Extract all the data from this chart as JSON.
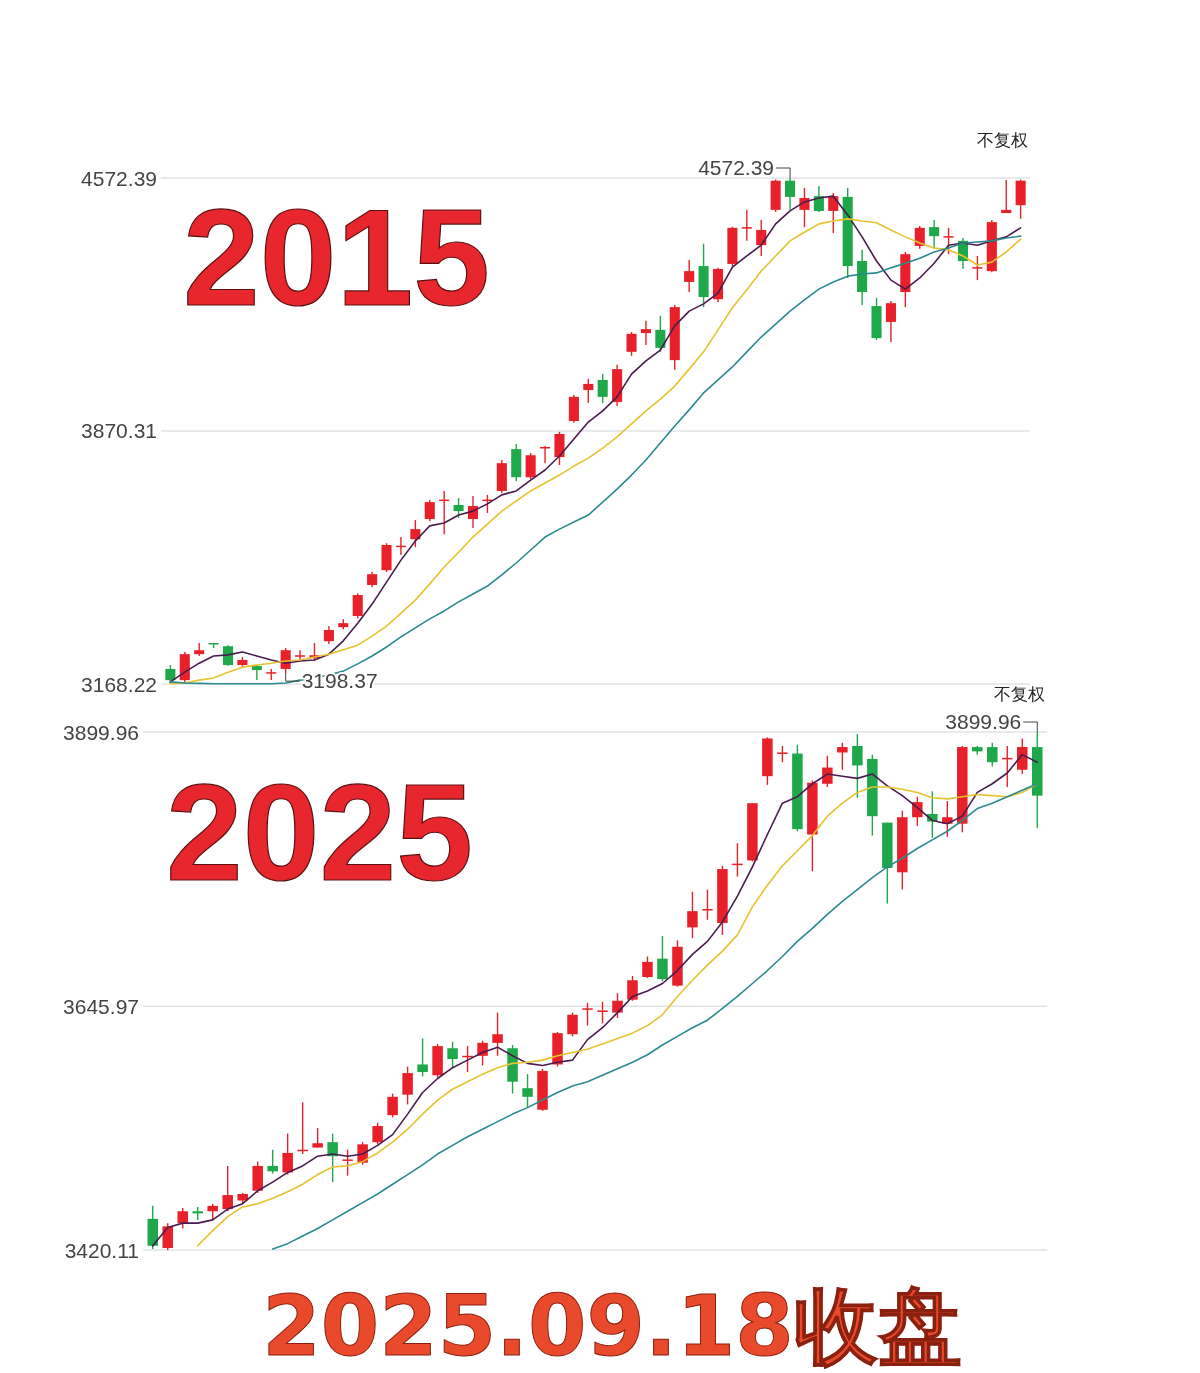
{
  "chart_data": [
    {
      "type": "candlestick",
      "title": "2015",
      "categories": [
        null,
        null,
        null,
        null,
        null,
        null,
        null,
        null,
        null,
        null,
        null,
        null,
        null,
        null,
        null,
        null,
        null,
        null,
        null,
        null,
        null,
        null,
        null,
        null,
        null,
        null,
        null,
        null,
        null,
        null,
        null,
        null,
        null,
        null,
        null,
        null,
        null,
        null,
        null,
        null,
        null,
        null,
        null,
        null,
        null,
        null,
        null,
        null,
        null,
        null,
        null,
        null,
        null,
        null,
        null,
        null,
        null,
        null,
        null,
        null
      ],
      "ohlc": [
        [
          3210,
          3221,
          3168.22,
          3179
        ],
        [
          3179,
          3257,
          3171,
          3251
        ],
        [
          3251,
          3282,
          3246,
          3262
        ],
        [
          3282,
          3282,
          3268,
          3280
        ],
        [
          3273,
          3276,
          3218,
          3221
        ],
        [
          3221,
          3243,
          3215,
          3235
        ],
        [
          3218,
          3221,
          3179,
          3207
        ],
        [
          3199,
          3210,
          3179,
          3201
        ],
        [
          3210,
          3268,
          3198.37,
          3262
        ],
        [
          3246,
          3262,
          3229,
          3248
        ],
        [
          3240,
          3282,
          3232,
          3248
        ],
        [
          3287,
          3329,
          3279,
          3318
        ],
        [
          3326,
          3348,
          3320,
          3337
        ],
        [
          3357,
          3420,
          3351,
          3415
        ],
        [
          3443,
          3479,
          3437,
          3473
        ],
        [
          3484,
          3559,
          3479,
          3554
        ],
        [
          3550,
          3576,
          3526,
          3552
        ],
        [
          3570,
          3623,
          3548,
          3598
        ],
        [
          3626,
          3679,
          3620,
          3673
        ],
        [
          3678,
          3704,
          3584,
          3680
        ],
        [
          3665,
          3684,
          3629,
          3648
        ],
        [
          3626,
          3690,
          3601,
          3662
        ],
        [
          3677,
          3693,
          3643,
          3680
        ],
        [
          3704,
          3790,
          3698,
          3781
        ],
        [
          3820,
          3834,
          3731,
          3742
        ],
        [
          3742,
          3809,
          3737,
          3803
        ],
        [
          3823,
          3829,
          3781,
          3826
        ],
        [
          3798,
          3868,
          3776,
          3862
        ],
        [
          3898,
          3970,
          3893,
          3965
        ],
        [
          3984,
          4015,
          3948,
          4001
        ],
        [
          4012,
          4029,
          3948,
          3965
        ],
        [
          3951,
          4054,
          3940,
          4042
        ],
        [
          4090,
          4145,
          4079,
          4140
        ],
        [
          4142,
          4176,
          4109,
          4153
        ],
        [
          4151,
          4190,
          4090,
          4101
        ],
        [
          4067,
          4220,
          4040,
          4214
        ],
        [
          4284,
          4345,
          4256,
          4314
        ],
        [
          4328,
          4390,
          4214,
          4242
        ],
        [
          4236,
          4323,
          4228,
          4320
        ],
        [
          4334,
          4437,
          4328,
          4434
        ],
        [
          4432,
          4484,
          4398,
          4436
        ],
        [
          4386,
          4456,
          4356,
          4428
        ],
        [
          4484,
          4568,
          4478,
          4565
        ],
        [
          4565,
          4572.39,
          4484,
          4520
        ],
        [
          4484,
          4545,
          4436,
          4517
        ],
        [
          4522,
          4550,
          4478,
          4481
        ],
        [
          4481,
          4531,
          4420,
          4522
        ],
        [
          4520,
          4545,
          4295,
          4328
        ],
        [
          4342,
          4373,
          4220,
          4256
        ],
        [
          4217,
          4240,
          4123,
          4128
        ],
        [
          4173,
          4231,
          4117,
          4225
        ],
        [
          4256,
          4367,
          4214,
          4361
        ],
        [
          4384,
          4439,
          4376,
          4434
        ],
        [
          4436,
          4456,
          4376,
          4411
        ],
        [
          4409,
          4434,
          4361,
          4411
        ],
        [
          4398,
          4406,
          4320,
          4342
        ],
        [
          4322,
          4356,
          4289,
          4325
        ],
        [
          4314,
          4456,
          4311,
          4450
        ],
        [
          4475,
          4567,
          4475,
          4484
        ],
        [
          4497,
          4568,
          4459,
          4565
        ]
      ],
      "series": [
        {
          "type": "line",
          "color": "#4a1c4e",
          "values": [
            3174,
            3201,
            3226,
            3246,
            3249,
            3257,
            3246,
            3235,
            3226,
            3232,
            3235,
            3251,
            3288,
            3337,
            3390,
            3451,
            3512,
            3565,
            3607,
            3615,
            3637,
            3648,
            3668,
            3693,
            3704,
            3734,
            3762,
            3801,
            3848,
            3895,
            3926,
            3965,
            4028,
            4065,
            4095,
            4162,
            4203,
            4223,
            4253,
            4325,
            4356,
            4386,
            4445,
            4481,
            4506,
            4517,
            4522,
            4470,
            4409,
            4342,
            4289,
            4264,
            4295,
            4336,
            4386,
            4392,
            4386,
            4398,
            4409,
            4434
          ]
        },
        {
          "type": "line",
          "color": "#e6c22e",
          "values": [
            3169,
            3171,
            3179,
            3185,
            3201,
            3215,
            3221,
            3226,
            3232,
            3235,
            3243,
            3251,
            3263,
            3276,
            3301,
            3329,
            3365,
            3401,
            3446,
            3493,
            3534,
            3576,
            3612,
            3648,
            3676,
            3704,
            3726,
            3748,
            3773,
            3795,
            3823,
            3854,
            3890,
            3926,
            3959,
            3995,
            4042,
            4090,
            4151,
            4212,
            4262,
            4314,
            4356,
            4398,
            4422,
            4445,
            4453,
            4459,
            4453,
            4448,
            4428,
            4409,
            4392,
            4378,
            4373,
            4356,
            4331,
            4339,
            4367,
            4403
          ]
        },
        {
          "type": "line",
          "color": "#2b8a8f",
          "values": [
            3174,
            3171,
            3170,
            3169,
            3169,
            3169,
            3169,
            3169,
            3171,
            3179,
            3185,
            3193,
            3204,
            3224,
            3246,
            3271,
            3299,
            3324,
            3349,
            3371,
            3396,
            3418,
            3440,
            3471,
            3504,
            3540,
            3576,
            3598,
            3618,
            3637,
            3673,
            3709,
            3748,
            3790,
            3837,
            3884,
            3929,
            3976,
            4012,
            4048,
            4090,
            4131,
            4167,
            4203,
            4234,
            4264,
            4284,
            4300,
            4306,
            4309,
            4323,
            4336,
            4350,
            4367,
            4378,
            4392,
            4395,
            4398,
            4406,
            4411
          ]
        }
      ],
      "ylim": [
        3168.22,
        4572.39
      ],
      "yticks": [
        3168.22,
        3870.31,
        4572.39
      ],
      "grid": "y",
      "annotations": [
        "4572.39",
        "不复权",
        {
          "text": "3198.37",
          "y": 3198.37
        }
      ]
    },
    {
      "type": "candlestick",
      "title": "2025",
      "categories": [
        null,
        null,
        null,
        null,
        null,
        null,
        null,
        null,
        null,
        null,
        null,
        null,
        null,
        null,
        null,
        null,
        null,
        null,
        null,
        null,
        null,
        null,
        null,
        null,
        null,
        null,
        null,
        null,
        null,
        null,
        null,
        null,
        null,
        null,
        null,
        null,
        null,
        null,
        null,
        null,
        null,
        null,
        null,
        null,
        null,
        null,
        null,
        null,
        null,
        null,
        null,
        null,
        null,
        null,
        null,
        null,
        null,
        null,
        null,
        null
      ],
      "ohlc": [
        [
          3449,
          3461,
          3421,
          3424
        ],
        [
          3422,
          3445,
          3420.11,
          3442
        ],
        [
          3445,
          3459,
          3440,
          3456
        ],
        [
          3456,
          3460,
          3448,
          3454
        ],
        [
          3456,
          3463,
          3448,
          3461
        ],
        [
          3458,
          3498,
          3456,
          3471
        ],
        [
          3466,
          3473,
          3463,
          3472
        ],
        [
          3475,
          3502,
          3473,
          3498
        ],
        [
          3498,
          3513,
          3491,
          3493
        ],
        [
          3492,
          3528,
          3490,
          3510
        ],
        [
          3512,
          3557,
          3509,
          3513
        ],
        [
          3515,
          3533,
          3515,
          3519
        ],
        [
          3520,
          3528,
          3483,
          3507
        ],
        [
          3503,
          3513,
          3489,
          3504
        ],
        [
          3501,
          3520,
          3499,
          3518
        ],
        [
          3520,
          3538,
          3518,
          3535
        ],
        [
          3545,
          3565,
          3543,
          3562
        ],
        [
          3564,
          3590,
          3555,
          3584
        ],
        [
          3592,
          3616,
          3581,
          3585
        ],
        [
          3582,
          3611,
          3580,
          3609
        ],
        [
          3607,
          3613,
          3588,
          3597
        ],
        [
          3599,
          3609,
          3585,
          3600
        ],
        [
          3600,
          3614,
          3591,
          3612
        ],
        [
          3612,
          3640,
          3600,
          3620
        ],
        [
          3607,
          3610,
          3565,
          3576
        ],
        [
          3570,
          3583,
          3552,
          3562
        ],
        [
          3550,
          3588,
          3549,
          3586
        ],
        [
          3592,
          3622,
          3590,
          3621
        ],
        [
          3620,
          3640,
          3618,
          3638
        ],
        [
          3643,
          3649,
          3628,
          3644
        ],
        [
          3641,
          3650,
          3630,
          3642
        ],
        [
          3640,
          3658,
          3635,
          3651
        ],
        [
          3652,
          3674,
          3651,
          3670
        ],
        [
          3673,
          3692,
          3672,
          3687
        ],
        [
          3690,
          3711,
          3669,
          3671
        ],
        [
          3665,
          3707,
          3664,
          3701
        ],
        [
          3719,
          3752,
          3709,
          3734
        ],
        [
          3735,
          3754,
          3726,
          3736
        ],
        [
          3723,
          3776,
          3712,
          3773
        ],
        [
          3777,
          3797,
          3766,
          3778
        ],
        [
          3781,
          3834,
          3780,
          3834
        ],
        [
          3859,
          3895,
          3851,
          3894
        ],
        [
          3880,
          3887,
          3872,
          3881
        ],
        [
          3880,
          3888,
          3808,
          3810
        ],
        [
          3805,
          3855,
          3771,
          3853
        ],
        [
          3852,
          3878,
          3849,
          3867
        ],
        [
          3881,
          3890,
          3865,
          3886
        ],
        [
          3887,
          3898,
          3839,
          3869
        ],
        [
          3875,
          3879,
          3804,
          3822
        ],
        [
          3816,
          3816,
          3741,
          3774
        ],
        [
          3770,
          3827,
          3754,
          3821
        ],
        [
          3821,
          3840,
          3813,
          3835
        ],
        [
          3824,
          3845,
          3802,
          3817
        ],
        [
          3815,
          3836,
          3803,
          3821
        ],
        [
          3815,
          3887,
          3807,
          3886
        ],
        [
          3886,
          3887,
          3879,
          3882
        ],
        [
          3886,
          3890,
          3868,
          3872
        ],
        [
          3875,
          3887,
          3849,
          3876
        ],
        [
          3865,
          3894,
          3861,
          3886
        ],
        [
          3886,
          3899.96,
          3811,
          3841
        ]
      ],
      "series": [
        {
          "type": "line",
          "color": "#4a1c4e",
          "values": [
            3424,
            3441,
            3445,
            3445,
            3448,
            3458,
            3463,
            3475,
            3483,
            3492,
            3498,
            3507,
            3509,
            3507,
            3509,
            3517,
            3527,
            3546,
            3566,
            3579,
            3589,
            3596,
            3603,
            3608,
            3600,
            3593,
            3591,
            3594,
            3596,
            3615,
            3626,
            3640,
            3655,
            3660,
            3667,
            3679,
            3694,
            3706,
            3724,
            3748,
            3775,
            3805,
            3834,
            3840,
            3852,
            3861,
            3859,
            3857,
            3861,
            3850,
            3841,
            3830,
            3818,
            3815,
            3822,
            3844,
            3852,
            3862,
            3879,
            3872
          ]
        },
        {
          "type": "line",
          "color": "#e6c22e",
          "values": [
            null,
            null,
            null,
            3424,
            3438,
            3451,
            3460,
            3463,
            3468,
            3474,
            3481,
            3490,
            3497,
            3498,
            3502,
            3510,
            3520,
            3532,
            3546,
            3559,
            3569,
            3576,
            3583,
            3589,
            3593,
            3594,
            3596,
            3600,
            3603,
            3606,
            3611,
            3616,
            3621,
            3628,
            3638,
            3655,
            3670,
            3684,
            3697,
            3712,
            3738,
            3758,
            3776,
            3790,
            3804,
            3822,
            3834,
            3844,
            3849,
            3849,
            3847,
            3844,
            3839,
            3838,
            3840,
            3842,
            3841,
            3840,
            3844,
            3852
          ]
        },
        {
          "type": "line",
          "color": "#2b8a8f",
          "values": [
            null,
            null,
            null,
            null,
            null,
            null,
            null,
            null,
            3421,
            3426,
            3433,
            3440,
            3448,
            3456,
            3464,
            3472,
            3481,
            3490,
            3499,
            3509,
            3517,
            3525,
            3532,
            3539,
            3546,
            3552,
            3559,
            3566,
            3572,
            3576,
            3582,
            3588,
            3594,
            3601,
            3610,
            3618,
            3626,
            3633,
            3644,
            3655,
            3667,
            3679,
            3692,
            3706,
            3718,
            3731,
            3743,
            3754,
            3765,
            3775,
            3783,
            3792,
            3800,
            3808,
            3818,
            3829,
            3834,
            3840,
            3846,
            3852
          ]
        }
      ],
      "ylim": [
        3420.11,
        3899.96
      ],
      "yticks": [
        3420.11,
        3645.97,
        3899.96
      ],
      "grid": "y",
      "annotations": [
        "3899.96",
        "不复权",
        "2025.09.18收盘"
      ]
    }
  ]
}
